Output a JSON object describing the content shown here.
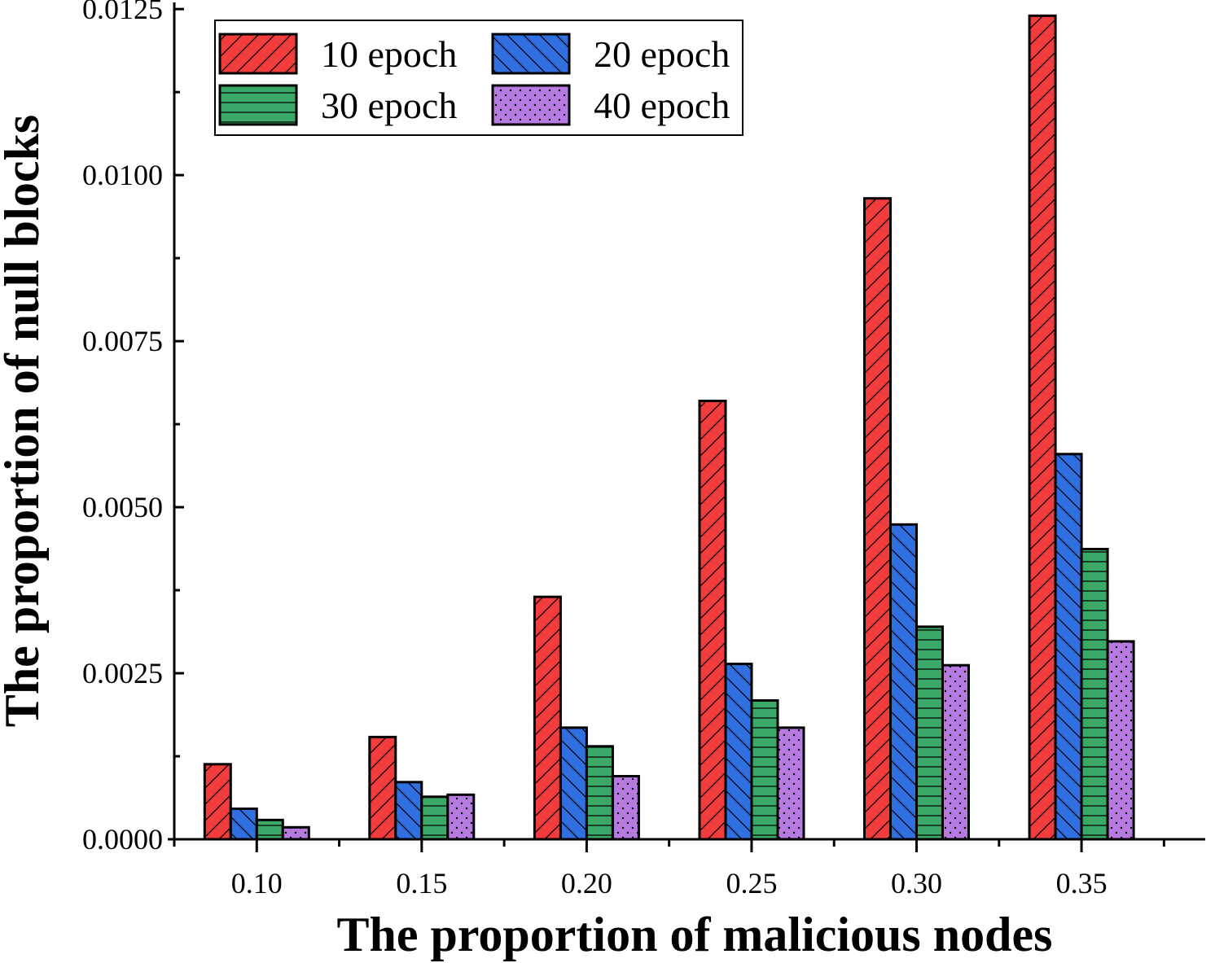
{
  "chart_data": {
    "type": "bar",
    "xlabel": "The proportion of malicious nodes",
    "ylabel": "The proportion of null blocks",
    "categories": [
      "0.10",
      "0.15",
      "0.20",
      "0.25",
      "0.30",
      "0.35"
    ],
    "series": [
      {
        "name": "10 epoch",
        "values": [
          0.00113,
          0.00154,
          0.00365,
          0.0066,
          0.00965,
          0.0124
        ],
        "color": "#f03c3c",
        "pattern": "hatch-forward"
      },
      {
        "name": "20 epoch",
        "values": [
          0.00046,
          0.00086,
          0.00168,
          0.00264,
          0.00474,
          0.0058
        ],
        "color": "#2f6fe0",
        "pattern": "hatch-back"
      },
      {
        "name": "30 epoch",
        "values": [
          0.00029,
          0.00064,
          0.0014,
          0.00209,
          0.0032,
          0.00437
        ],
        "color": "#3aa866",
        "pattern": "horizontal-lines"
      },
      {
        "name": "40 epoch",
        "values": [
          0.00018,
          0.00067,
          0.00095,
          0.00168,
          0.00262,
          0.00298
        ],
        "color": "#b67ae0",
        "pattern": "dots"
      }
    ],
    "yticks": [
      "0.0000",
      "0.0025",
      "0.0050",
      "0.0075",
      "0.0100",
      "0.0125"
    ],
    "ylim": [
      0,
      0.0126
    ],
    "xlim": [
      0.075,
      0.3875
    ],
    "grid": false,
    "legend_position": "top-left"
  }
}
